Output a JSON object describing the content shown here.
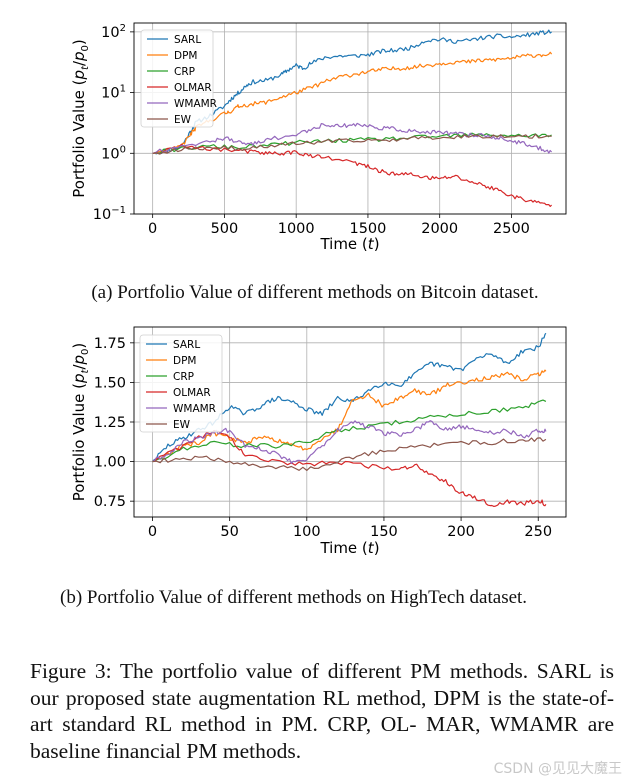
{
  "colors": {
    "SARL": "#1f77b4",
    "DPM": "#ff7f0e",
    "CRP": "#2ca02c",
    "OLMAR": "#d62728",
    "WMAMR": "#9467bd",
    "EW": "#8c564b"
  },
  "chart_data": [
    {
      "type": "line",
      "panel": "a",
      "yscale": "log",
      "xlabel": "Time (t)",
      "ylabel": "Portfolio Value (pt/p0)",
      "xlim": [
        -130,
        2880
      ],
      "ylim": [
        0.1,
        140
      ],
      "xticks": [
        0,
        500,
        1000,
        1500,
        2000,
        2500
      ],
      "xtick_labels": [
        "0",
        "500",
        "1000",
        "1500",
        "2000",
        "2500"
      ],
      "yticks": [
        0.1,
        1,
        10,
        100
      ],
      "grid": true,
      "legend": "top-left",
      "noise": 0.14,
      "series": [
        {
          "name": "SARL",
          "x": [
            0,
            100,
            200,
            260,
            300,
            400,
            500,
            550,
            600,
            650,
            700,
            800,
            900,
            950,
            1000,
            1050,
            1100,
            1200,
            1300,
            1400,
            1500,
            1600,
            1700,
            1800,
            1900,
            2000,
            2100,
            2200,
            2300,
            2400,
            2500,
            2600,
            2700,
            2780
          ],
          "values": [
            1.0,
            1.1,
            1.3,
            2.2,
            3.2,
            4.2,
            6.0,
            8.0,
            10.0,
            13.0,
            15.0,
            16.0,
            20.0,
            24.0,
            28.0,
            25.0,
            30.0,
            38.0,
            40.0,
            40.0,
            42.0,
            48.0,
            50.0,
            55.0,
            72.0,
            75.0,
            70.0,
            72.0,
            80.0,
            85.0,
            82.0,
            88.0,
            96.0,
            100.0
          ]
        },
        {
          "name": "DPM",
          "x": [
            0,
            100,
            200,
            260,
            300,
            400,
            500,
            550,
            600,
            700,
            800,
            900,
            1000,
            1100,
            1200,
            1300,
            1400,
            1500,
            1600,
            1700,
            1800,
            1900,
            2000,
            2100,
            2200,
            2300,
            2400,
            2500,
            2600,
            2700,
            2780
          ],
          "values": [
            1.0,
            1.1,
            1.3,
            2.0,
            2.6,
            3.5,
            4.5,
            5.0,
            6.0,
            6.5,
            7.0,
            8.5,
            10.0,
            12.0,
            15.0,
            18.0,
            20.0,
            22.0,
            24.0,
            25.0,
            26.0,
            28.0,
            30.0,
            32.0,
            32.0,
            34.0,
            35.0,
            37.0,
            40.0,
            42.0,
            43.0
          ]
        },
        {
          "name": "CRP",
          "x": [
            0,
            200,
            400,
            600,
            800,
            1000,
            1200,
            1400,
            1600,
            1800,
            2000,
            2200,
            2400,
            2600,
            2780
          ],
          "values": [
            1.0,
            1.2,
            1.3,
            1.25,
            1.35,
            1.5,
            1.6,
            1.65,
            1.7,
            1.8,
            1.9,
            2.0,
            2.0,
            1.95,
            2.0
          ]
        },
        {
          "name": "OLMAR",
          "x": [
            0,
            200,
            400,
            600,
            700,
            800,
            900,
            1000,
            1100,
            1200,
            1400,
            1500,
            1600,
            1700,
            1800,
            1900,
            2000,
            2100,
            2200,
            2300,
            2400,
            2500,
            2600,
            2700,
            2780
          ],
          "values": [
            1.0,
            1.3,
            1.2,
            1.1,
            1.05,
            1.0,
            1.0,
            1.05,
            0.9,
            0.85,
            0.7,
            0.6,
            0.5,
            0.45,
            0.45,
            0.4,
            0.38,
            0.42,
            0.35,
            0.3,
            0.25,
            0.2,
            0.17,
            0.15,
            0.14
          ]
        },
        {
          "name": "WMAMR",
          "x": [
            0,
            200,
            400,
            500,
            600,
            700,
            800,
            1000,
            1100,
            1200,
            1300,
            1400,
            1500,
            1600,
            1700,
            1800,
            1900,
            2000,
            2100,
            2200,
            2300,
            2400,
            2500,
            2600,
            2700,
            2780
          ],
          "values": [
            1.0,
            1.4,
            1.5,
            1.8,
            1.5,
            1.4,
            1.7,
            2.0,
            2.5,
            3.0,
            2.8,
            3.0,
            2.8,
            2.6,
            2.5,
            2.3,
            2.2,
            2.2,
            2.1,
            2.0,
            2.0,
            1.8,
            1.6,
            1.4,
            1.2,
            1.05
          ]
        },
        {
          "name": "EW",
          "x": [
            0,
            200,
            400,
            600,
            800,
            1000,
            1200,
            1400,
            1600,
            1800,
            2000,
            2200,
            2400,
            2600,
            2780
          ],
          "values": [
            1.0,
            1.15,
            1.25,
            1.2,
            1.3,
            1.45,
            1.55,
            1.6,
            1.65,
            1.75,
            1.85,
            1.9,
            1.95,
            1.9,
            1.9
          ]
        }
      ]
    },
    {
      "type": "line",
      "panel": "b",
      "yscale": "linear",
      "xlabel": "Time (t)",
      "ylabel": "Portfolio Value (pt/p0)",
      "xlim": [
        -12,
        268
      ],
      "ylim": [
        0.65,
        1.85
      ],
      "xticks": [
        0,
        50,
        100,
        150,
        200,
        250
      ],
      "xtick_labels": [
        "0",
        "50",
        "100",
        "150",
        "200",
        "250"
      ],
      "yticks": [
        0.75,
        1.0,
        1.25,
        1.5,
        1.75
      ],
      "ytick_labels": [
        "0.75",
        "1.00",
        "1.25",
        "1.50",
        "1.75"
      ],
      "grid": true,
      "legend": "top-left",
      "noise": 0.012,
      "series": [
        {
          "name": "SARL",
          "x": [
            0,
            10,
            20,
            30,
            40,
            50,
            60,
            70,
            80,
            90,
            100,
            110,
            120,
            130,
            140,
            150,
            160,
            170,
            180,
            190,
            200,
            210,
            220,
            230,
            240,
            250,
            255
          ],
          "values": [
            1.0,
            1.1,
            1.15,
            1.2,
            1.25,
            1.35,
            1.3,
            1.35,
            1.4,
            1.38,
            1.33,
            1.3,
            1.4,
            1.38,
            1.45,
            1.5,
            1.48,
            1.55,
            1.62,
            1.6,
            1.58,
            1.65,
            1.68,
            1.62,
            1.7,
            1.72,
            1.81
          ]
        },
        {
          "name": "DPM",
          "x": [
            0,
            10,
            20,
            30,
            40,
            50,
            60,
            70,
            80,
            90,
            100,
            110,
            120,
            130,
            140,
            150,
            160,
            170,
            180,
            190,
            200,
            210,
            220,
            230,
            240,
            250,
            255
          ],
          "values": [
            1.0,
            1.05,
            1.1,
            1.12,
            1.18,
            1.15,
            1.12,
            1.15,
            1.14,
            1.1,
            1.08,
            1.15,
            1.2,
            1.4,
            1.42,
            1.35,
            1.4,
            1.45,
            1.42,
            1.48,
            1.5,
            1.52,
            1.53,
            1.55,
            1.52,
            1.55,
            1.57
          ]
        },
        {
          "name": "CRP",
          "x": [
            0,
            20,
            40,
            60,
            80,
            100,
            120,
            140,
            160,
            180,
            200,
            220,
            240,
            255
          ],
          "values": [
            1.0,
            1.08,
            1.12,
            1.1,
            1.1,
            1.12,
            1.2,
            1.22,
            1.25,
            1.28,
            1.3,
            1.32,
            1.34,
            1.38
          ]
        },
        {
          "name": "OLMAR",
          "x": [
            0,
            20,
            40,
            50,
            60,
            80,
            100,
            120,
            140,
            160,
            170,
            180,
            190,
            200,
            210,
            220,
            230,
            240,
            250,
            255
          ],
          "values": [
            1.0,
            1.1,
            1.2,
            1.15,
            1.05,
            1.0,
            0.98,
            1.0,
            0.97,
            0.95,
            0.98,
            0.92,
            0.88,
            0.8,
            0.77,
            0.72,
            0.75,
            0.73,
            0.76,
            0.73
          ]
        },
        {
          "name": "WMAMR",
          "x": [
            0,
            10,
            20,
            30,
            40,
            50,
            60,
            70,
            80,
            90,
            100,
            110,
            120,
            130,
            140,
            150,
            160,
            170,
            180,
            190,
            200,
            210,
            220,
            230,
            240,
            250,
            255
          ],
          "values": [
            1.0,
            1.05,
            1.12,
            1.15,
            1.18,
            1.2,
            1.1,
            1.08,
            1.05,
            1.0,
            1.02,
            1.1,
            1.2,
            1.25,
            1.22,
            1.18,
            1.17,
            1.2,
            1.25,
            1.2,
            1.22,
            1.2,
            1.18,
            1.2,
            1.15,
            1.2,
            1.19
          ]
        },
        {
          "name": "EW",
          "x": [
            0,
            20,
            40,
            60,
            80,
            100,
            120,
            140,
            160,
            180,
            200,
            220,
            240,
            255
          ],
          "values": [
            1.0,
            1.02,
            1.02,
            0.98,
            0.97,
            0.95,
            1.0,
            1.05,
            1.08,
            1.1,
            1.12,
            1.12,
            1.14,
            1.14
          ]
        }
      ]
    }
  ],
  "captions": {
    "a": "(a) Portfolio Value of different methods on Bitcoin dataset.",
    "b": "(b) Portfolio Value of different methods on HighTech dataset.",
    "figure": "Figure 3: The portfolio value of different PM methods. SARL is our proposed state augmentation RL method, DPM is the state-of-art standard RL method in PM. CRP, OL- MAR, WMAMR are baseline financial PM methods."
  },
  "watermark": "CSDN @见见大魔王"
}
